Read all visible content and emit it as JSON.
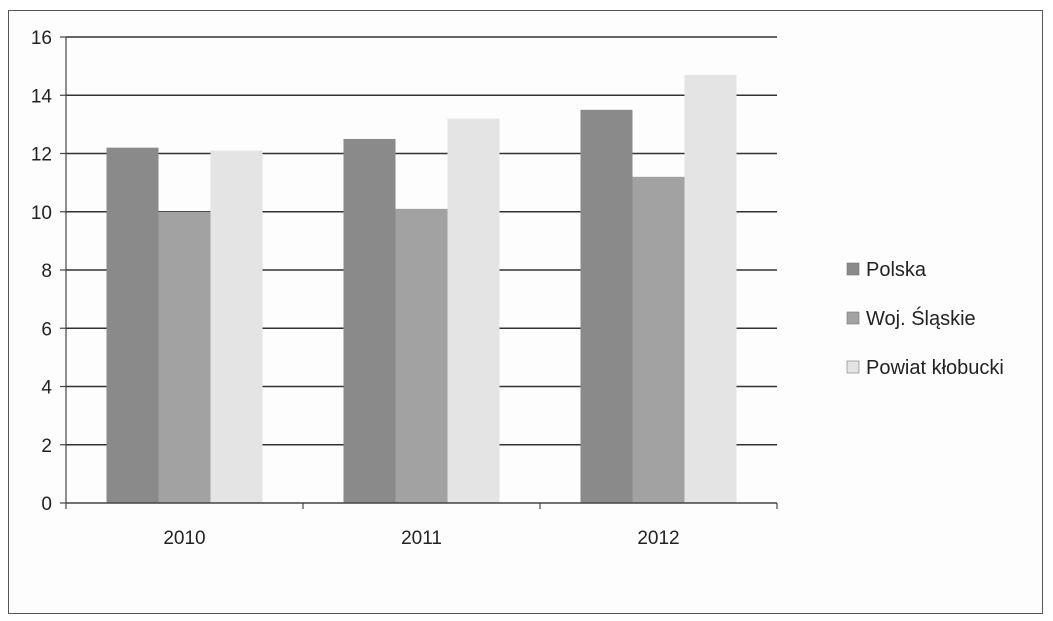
{
  "chart_data": {
    "type": "bar",
    "categories": [
      "2010",
      "2011",
      "2012"
    ],
    "series": [
      {
        "name": "Polska",
        "values": [
          12.2,
          12.5,
          13.5
        ]
      },
      {
        "name": "Woj. Śląskie",
        "values": [
          10.0,
          10.1,
          11.2
        ]
      },
      {
        "name": "Powiat kłobucki",
        "values": [
          12.1,
          13.2,
          14.7
        ]
      }
    ],
    "ylim": [
      0,
      16
    ],
    "yticks": [
      0,
      2,
      4,
      6,
      8,
      10,
      12,
      14,
      16
    ],
    "grid": true,
    "legend_position": "right",
    "colors": {
      "Polska": "#8a8a8a",
      "Woj. Śląskie": "#a2a2a2",
      "Powiat kłobucki": "#e4e4e4",
      "gridline": "#333333",
      "axis": "#444444"
    }
  }
}
